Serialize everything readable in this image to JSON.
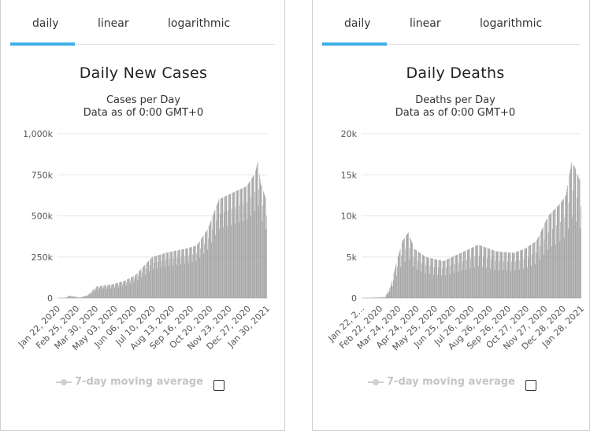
{
  "tabs": [
    {
      "label": "daily",
      "active": true
    },
    {
      "label": "linear",
      "active": false
    },
    {
      "label": "logarithmic",
      "active": false
    }
  ],
  "legend_label": "7-day moving average",
  "colors": {
    "bar": "#999999",
    "accent": "#3fb0e6",
    "grid": "#e6e6e6",
    "legend_disabled": "#c4c4c4"
  },
  "chart_data": [
    {
      "type": "bar",
      "title": "Daily New Cases",
      "subtitle": "Cases per Day",
      "subtitle2": "Data as of 0:00 GMT+0",
      "ylim": [
        0,
        1000000
      ],
      "ytick_values": [
        0,
        250000,
        500000,
        750000,
        1000000
      ],
      "ytick_labels": [
        "0",
        "250k",
        "500k",
        "750k",
        "1,000k"
      ],
      "xtick_labels": [
        "Jan 22, 2020",
        "Feb 25, 2020",
        "Mar 30, 2020",
        "May 03, 2020",
        "Jun 06, 2020",
        "Jul 10, 2020",
        "Aug 13, 2020",
        "Sep 16, 2020",
        "Oct 20, 2020",
        "Nov 23, 2020",
        "Dec 27, 2020",
        "Jan 30, 2021"
      ],
      "x_start": "2020-01-22",
      "day_count": 377,
      "series_knots": [
        [
          0,
          600
        ],
        [
          14,
          2000
        ],
        [
          21,
          15000
        ],
        [
          40,
          3000
        ],
        [
          55,
          20000
        ],
        [
          70,
          70000
        ],
        [
          100,
          85000
        ],
        [
          120,
          105000
        ],
        [
          140,
          140000
        ],
        [
          170,
          250000
        ],
        [
          200,
          280000
        ],
        [
          230,
          300000
        ],
        [
          250,
          320000
        ],
        [
          270,
          420000
        ],
        [
          290,
          600000
        ],
        [
          320,
          650000
        ],
        [
          340,
          680000
        ],
        [
          355,
          760000
        ],
        [
          360,
          830000
        ],
        [
          365,
          700000
        ],
        [
          376,
          590000
        ]
      ],
      "weekly_dip": 0.7,
      "grid": true
    },
    {
      "type": "bar",
      "title": "Daily Deaths",
      "subtitle": "Deaths per Day",
      "subtitle2": "Data as of 0:00 GMT+0",
      "ylim": [
        0,
        20000
      ],
      "ytick_values": [
        0,
        5000,
        10000,
        15000,
        20000
      ],
      "ytick_labels": [
        "0",
        "5k",
        "10k",
        "15k",
        "20k"
      ],
      "xtick_labels": [
        "Jan 22, 2...",
        "Feb 22, 2020",
        "Mar 24, 2020",
        "Apr 24, 2020",
        "May 25, 2020",
        "Jun 25, 2020",
        "Jul 26, 2020",
        "Aug 26, 2020",
        "Sep 26, 2020",
        "Oct 27, 2020",
        "Nov 27, 2020",
        "Dec 28, 2020",
        "Jan 28, 2021"
      ],
      "x_start": "2020-01-22",
      "day_count": 377,
      "series_knots": [
        [
          0,
          10
        ],
        [
          40,
          100
        ],
        [
          50,
          1500
        ],
        [
          60,
          4500
        ],
        [
          70,
          7000
        ],
        [
          80,
          8000
        ],
        [
          90,
          6000
        ],
        [
          110,
          5000
        ],
        [
          140,
          4500
        ],
        [
          170,
          5500
        ],
        [
          200,
          6500
        ],
        [
          230,
          5700
        ],
        [
          260,
          5500
        ],
        [
          280,
          6000
        ],
        [
          300,
          7000
        ],
        [
          320,
          10000
        ],
        [
          340,
          11500
        ],
        [
          350,
          12500
        ],
        [
          360,
          16500
        ],
        [
          365,
          16000
        ],
        [
          376,
          14000
        ]
      ],
      "weekly_dip": 0.6,
      "grid": true
    }
  ]
}
